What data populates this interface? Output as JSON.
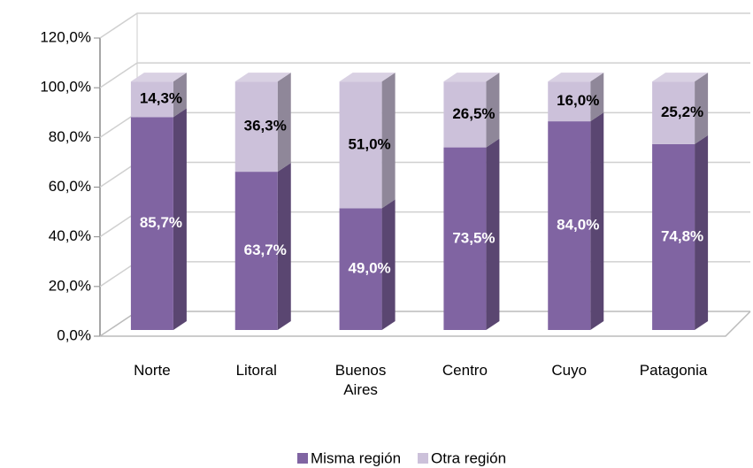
{
  "chart_data": {
    "type": "bar3d_stacked",
    "categories": [
      "Norte",
      "Litoral",
      "Buenos Aires",
      "Centro",
      "Cuyo",
      "Patagonia"
    ],
    "series": [
      {
        "name": "Misma región",
        "color": "#8064a2",
        "values": [
          85.7,
          63.7,
          49.0,
          73.5,
          84.0,
          74.8
        ],
        "value_labels": [
          "85,7%",
          "63,7%",
          "49,0%",
          "73,5%",
          "84,0%",
          "74,8%"
        ]
      },
      {
        "name": "Otra región",
        "color": "#ccc1da",
        "values": [
          14.3,
          36.3,
          51.0,
          26.5,
          16.0,
          25.2
        ],
        "value_labels": [
          "14,3%",
          "36,3%",
          "51,0%",
          "26,5%",
          "16,0%",
          "25,2%"
        ]
      }
    ],
    "ylim": [
      0,
      120
    ],
    "yticks": [
      {
        "value": 0,
        "label": "0,0%"
      },
      {
        "value": 20,
        "label": "20,0%"
      },
      {
        "value": 40,
        "label": "40,0%"
      },
      {
        "value": 60,
        "label": "60,0%"
      },
      {
        "value": 80,
        "label": "80,0%"
      },
      {
        "value": 100,
        "label": "100,0%"
      },
      {
        "value": 120,
        "label": "120,0%"
      }
    ],
    "grid": true,
    "legend": "bottom"
  }
}
